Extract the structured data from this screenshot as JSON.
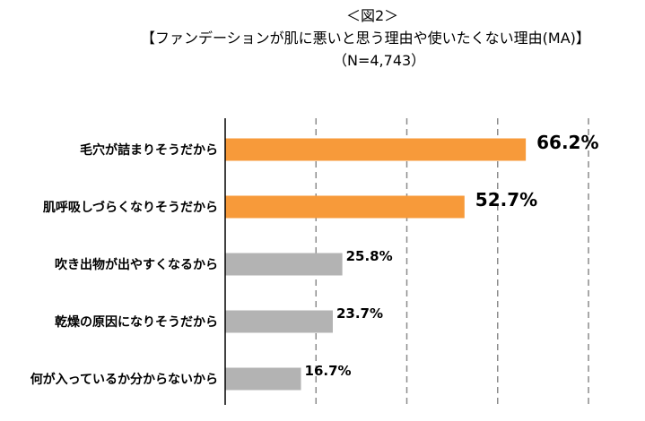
{
  "titles": {
    "figure": "＜図2＞",
    "main": "【ファンデーションが肌に悪いと思う理由や使いたくない理由(MA)】",
    "sample": "（N=4,743）"
  },
  "chart_data": {
    "type": "bar",
    "orientation": "horizontal",
    "categories": [
      "毛穴が詰まりそうだから",
      "肌呼吸しづらくなりそうだから",
      "吹き出物が出やすくなるから",
      "乾燥の原因になりそうだから",
      "何が入っているか分からないから"
    ],
    "values": [
      66.2,
      52.7,
      25.8,
      23.7,
      16.7
    ],
    "labels": [
      "66.2%",
      "52.7%",
      "25.8%",
      "23.7%",
      "16.7%"
    ],
    "unit": "%",
    "xlim": [
      0,
      80
    ],
    "gridlines": "dashed-vertical",
    "colors": {
      "highlight": "#F79A3A",
      "normal": "#B3B3B3",
      "grid": "#8C8C8C",
      "axis": "#000000"
    },
    "highlight_count": 2
  }
}
